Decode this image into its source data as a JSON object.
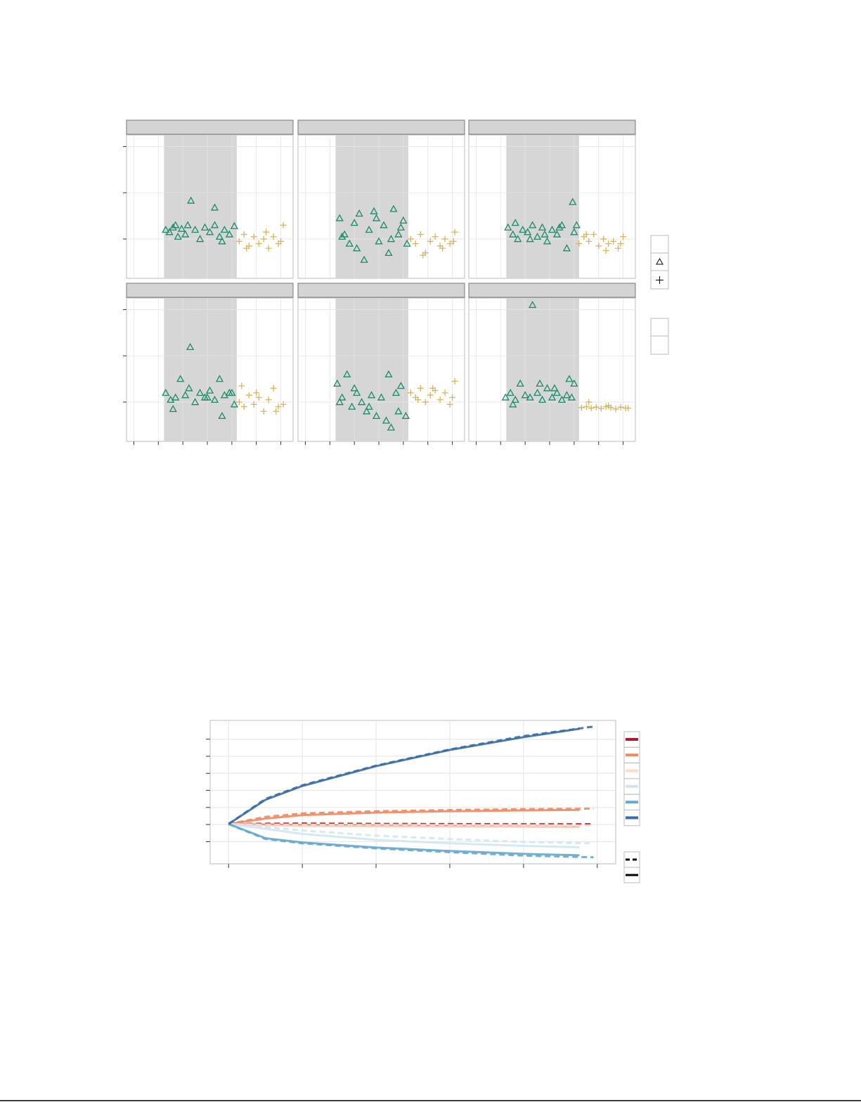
{
  "chart_data": [
    {
      "type": "facet-scatter",
      "xlim": [
        -0.3,
        6.5
      ],
      "ylim": [
        -0.85,
        2.25
      ],
      "xticks": [
        0,
        1,
        2,
        3,
        4,
        5,
        6
      ],
      "yticks": [
        0,
        1,
        2
      ],
      "grid": true,
      "shade": [
        1.23,
        4.2
      ],
      "panels": [
        {
          "series": [
            {
              "color": "#1b8a6b",
              "marker": "triangle",
              "x": [
                1.3,
                1.45,
                1.6,
                1.8,
                1.95,
                2.1,
                2.33,
                2.5,
                2.7,
                2.9,
                3.1,
                3.3,
                3.5,
                3.7,
                3.9,
                4.1,
                2.2,
                3.3,
                3.6,
                1.7
              ],
              "values": [
                0.2,
                0.15,
                0.25,
                0.05,
                0.22,
                0.1,
                0.83,
                0.2,
                0.0,
                0.25,
                0.15,
                0.3,
                0.05,
                0.2,
                0.1,
                0.28,
                0.3,
                0.68,
                -0.05,
                0.3
              ]
            },
            {
              "color": "#d9b25c",
              "marker": "plus",
              "x": [
                4.3,
                4.5,
                4.7,
                4.9,
                5.1,
                5.3,
                5.5,
                5.7,
                5.9,
                6.1,
                4.6,
                5.4,
                6.0
              ],
              "values": [
                -0.05,
                0.1,
                -0.15,
                0.05,
                -0.1,
                0.0,
                -0.2,
                0.05,
                -0.1,
                0.3,
                -0.2,
                0.15,
                -0.05
              ]
            }
          ]
        },
        {
          "series": [
            {
              "color": "#1b8a6b",
              "marker": "triangle",
              "x": [
                1.4,
                1.6,
                1.8,
                2.0,
                2.2,
                2.4,
                2.6,
                2.8,
                3.0,
                3.2,
                3.4,
                3.6,
                3.8,
                4.0,
                4.15,
                1.5,
                2.1,
                2.9,
                3.5,
                3.9
              ],
              "values": [
                0.45,
                0.1,
                -0.1,
                0.35,
                0.55,
                -0.45,
                0.2,
                0.6,
                -0.05,
                0.3,
                -0.3,
                0.65,
                0.1,
                0.4,
                -0.1,
                0.05,
                -0.2,
                0.45,
                0.0,
                0.25
              ]
            },
            {
              "color": "#d9b25c",
              "marker": "plus",
              "x": [
                4.3,
                4.5,
                4.7,
                4.9,
                5.1,
                5.3,
                5.5,
                5.7,
                5.9,
                6.1,
                4.8,
                5.6,
                6.05
              ],
              "values": [
                0.0,
                -0.1,
                0.1,
                -0.3,
                -0.05,
                0.05,
                -0.15,
                0.0,
                -0.1,
                0.15,
                -0.35,
                -0.2,
                -0.05
              ]
            }
          ]
        },
        {
          "series": [
            {
              "color": "#1b8a6b",
              "marker": "triangle",
              "x": [
                1.3,
                1.5,
                1.7,
                1.9,
                2.1,
                2.3,
                2.5,
                2.7,
                2.9,
                3.1,
                3.3,
                3.5,
                3.7,
                3.94,
                4.1,
                1.6,
                2.2,
                2.8,
                3.4,
                4.0
              ],
              "values": [
                0.25,
                0.1,
                0.0,
                0.2,
                0.15,
                0.3,
                0.05,
                0.25,
                -0.05,
                0.2,
                0.1,
                0.3,
                -0.2,
                0.8,
                0.3,
                0.35,
                0.0,
                0.1,
                0.25,
                0.15
              ]
            },
            {
              "color": "#d9b25c",
              "marker": "plus",
              "x": [
                4.2,
                4.4,
                4.6,
                4.8,
                5.0,
                5.2,
                5.4,
                5.6,
                5.8,
                6.0,
                4.5,
                5.3,
                5.9
              ],
              "values": [
                -0.1,
                0.05,
                -0.05,
                0.1,
                -0.15,
                0.0,
                -0.1,
                -0.05,
                -0.2,
                0.05,
                0.1,
                -0.25,
                -0.1
              ]
            }
          ]
        },
        {
          "series": [
            {
              "color": "#1b8a6b",
              "marker": "triangle",
              "x": [
                1.3,
                1.5,
                1.7,
                1.9,
                2.1,
                2.3,
                2.5,
                2.7,
                2.9,
                3.1,
                3.3,
                3.5,
                3.7,
                3.9,
                4.1,
                1.6,
                2.25,
                3.0,
                3.6,
                4.0
              ],
              "values": [
                0.2,
                0.05,
                0.1,
                0.5,
                0.15,
                1.19,
                0.0,
                0.2,
                0.1,
                0.25,
                0.05,
                0.5,
                0.15,
                0.2,
                -0.05,
                -0.15,
                0.3,
                0.1,
                -0.3,
                0.2
              ]
            },
            {
              "color": "#d9b25c",
              "marker": "plus",
              "x": [
                4.3,
                4.5,
                4.7,
                4.9,
                5.1,
                5.3,
                5.5,
                5.7,
                5.9,
                6.1,
                4.4,
                5.0,
                5.8
              ],
              "values": [
                0.0,
                -0.1,
                0.15,
                -0.05,
                0.1,
                -0.2,
                0.05,
                0.3,
                -0.1,
                -0.05,
                0.35,
                0.2,
                -0.2
              ]
            }
          ]
        },
        {
          "series": [
            {
              "color": "#1b8a6b",
              "marker": "triangle",
              "x": [
                1.3,
                1.5,
                1.7,
                1.9,
                2.1,
                2.3,
                2.5,
                2.7,
                2.9,
                3.1,
                3.3,
                3.5,
                3.7,
                3.9,
                4.1,
                1.4,
                2.0,
                2.6,
                3.4,
                3.8
              ],
              "values": [
                0.4,
                0.1,
                0.6,
                -0.1,
                0.2,
                0.0,
                -0.2,
                0.15,
                -0.3,
                0.1,
                -0.4,
                -0.55,
                0.2,
                0.35,
                -0.3,
                0.0,
                0.3,
                -0.1,
                0.6,
                -0.2
              ]
            },
            {
              "color": "#d9b25c",
              "marker": "plus",
              "x": [
                4.3,
                4.5,
                4.7,
                4.9,
                5.1,
                5.3,
                5.5,
                5.7,
                5.9,
                6.1,
                4.6,
                5.2,
                6.0
              ],
              "values": [
                0.2,
                0.1,
                0.3,
                0.0,
                0.15,
                0.25,
                0.05,
                0.2,
                -0.05,
                0.45,
                0.05,
                0.3,
                0.1
              ]
            }
          ]
        },
        {
          "series": [
            {
              "color": "#1b8a6b",
              "marker": "triangle",
              "x": [
                1.2,
                1.4,
                1.6,
                1.8,
                2.0,
                2.2,
                2.3,
                2.5,
                2.7,
                2.9,
                3.1,
                3.3,
                3.5,
                3.7,
                3.9,
                4.0,
                1.5,
                2.6,
                3.2,
                3.8
              ],
              "values": [
                0.1,
                0.2,
                0.05,
                0.4,
                0.15,
                0.1,
                2.1,
                0.2,
                0.05,
                0.3,
                0.1,
                0.2,
                0.05,
                0.15,
                0.1,
                0.4,
                -0.05,
                0.4,
                0.3,
                0.5
              ]
            },
            {
              "color": "#d9b25c",
              "marker": "plus",
              "x": [
                4.3,
                4.5,
                4.7,
                4.9,
                5.1,
                5.3,
                5.5,
                5.7,
                5.9,
                6.1,
                4.6,
                5.4,
                6.2
              ],
              "values": [
                -0.12,
                -0.1,
                -0.13,
                -0.11,
                -0.14,
                -0.1,
                -0.12,
                -0.15,
                -0.11,
                -0.13,
                0.0,
                -0.08,
                -0.13
              ]
            }
          ]
        }
      ]
    },
    {
      "type": "line",
      "xlim": [
        -0.25,
        5.25
      ],
      "ylim": [
        -1.3,
        7.1
      ],
      "xticks": [
        0,
        1,
        2,
        3,
        4,
        5
      ],
      "yticks": [
        0,
        1,
        2,
        3,
        4,
        5,
        6
      ],
      "grid": true,
      "series": [
        {
          "color": "#b2182b",
          "dash": false,
          "x": [
            0,
            0.5,
            1,
            2,
            3,
            4,
            4.76
          ],
          "values": [
            1.03,
            0.98,
            0.95,
            0.92,
            0.9,
            0.88,
            0.86
          ]
        },
        {
          "color": "#b2182b",
          "dash": true,
          "x": [
            0,
            0.5,
            1,
            2,
            3,
            4,
            4.95
          ],
          "values": [
            1.03,
            1.05,
            1.06,
            1.04,
            1.03,
            1.02,
            1.02
          ]
        },
        {
          "color": "#ef8a62",
          "dash": false,
          "x": [
            0,
            0.5,
            1,
            2,
            3,
            4,
            4.76
          ],
          "values": [
            1.03,
            1.35,
            1.55,
            1.7,
            1.78,
            1.83,
            1.86
          ]
        },
        {
          "color": "#ef8a62",
          "dash": true,
          "x": [
            0,
            0.5,
            1,
            2,
            3,
            4,
            4.95
          ],
          "values": [
            1.03,
            1.45,
            1.65,
            1.78,
            1.85,
            1.9,
            1.93
          ]
        },
        {
          "color": "#fddbc7",
          "dash": false,
          "x": [
            0,
            0.5,
            1,
            2,
            3,
            4,
            4.76
          ],
          "values": [
            1.03,
            0.95,
            0.92,
            0.9,
            0.88,
            0.87,
            0.85
          ]
        },
        {
          "color": "#fddbc7",
          "dash": true,
          "x": [
            0,
            0.5,
            1,
            2,
            3,
            4,
            4.95
          ],
          "values": [
            1.03,
            1.0,
            0.99,
            0.98,
            0.97,
            0.96,
            0.95
          ]
        },
        {
          "color": "#d1e5f0",
          "dash": false,
          "x": [
            0,
            0.5,
            1,
            2,
            3,
            4,
            4.76
          ],
          "values": [
            1.03,
            0.75,
            0.45,
            0.1,
            -0.1,
            -0.25,
            -0.33
          ]
        },
        {
          "color": "#d1e5f0",
          "dash": true,
          "x": [
            0,
            0.5,
            1,
            2,
            3,
            4,
            4.95
          ],
          "values": [
            1.03,
            0.85,
            0.65,
            0.35,
            0.15,
            -0.02,
            -0.1
          ]
        },
        {
          "color": "#67a9cf",
          "dash": false,
          "x": [
            0,
            0.5,
            1,
            2,
            3,
            4,
            4.76
          ],
          "values": [
            1.03,
            0.2,
            -0.05,
            -0.35,
            -0.55,
            -0.72,
            -0.8
          ]
        },
        {
          "color": "#67a9cf",
          "dash": true,
          "x": [
            0,
            0.5,
            1,
            2,
            3,
            4,
            4.95
          ],
          "values": [
            1.03,
            0.15,
            -0.1,
            -0.4,
            -0.62,
            -0.82,
            -0.92
          ]
        },
        {
          "color": "#3a6ea5",
          "dash": false,
          "x": [
            0,
            0.5,
            1,
            2,
            3,
            4,
            4.76
          ],
          "values": [
            1.03,
            2.45,
            3.26,
            4.42,
            5.37,
            6.12,
            6.61
          ]
        },
        {
          "color": "#3a6ea5",
          "dash": true,
          "x": [
            0,
            0.5,
            1,
            2,
            3,
            4,
            4.95
          ],
          "values": [
            1.03,
            2.5,
            3.3,
            4.45,
            5.4,
            6.18,
            6.74
          ]
        }
      ]
    }
  ]
}
